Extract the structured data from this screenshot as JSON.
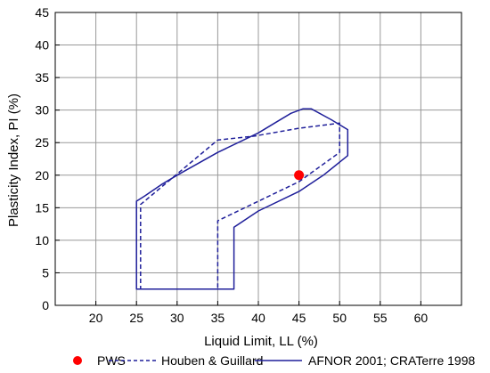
{
  "chart_data": {
    "type": "scatter",
    "xlabel": "Liquid Limit, LL (%)",
    "ylabel": "Plasticity Index, PI (%)",
    "xlim": [
      15,
      65
    ],
    "ylim": [
      0,
      45
    ],
    "x_ticks": [
      20,
      25,
      30,
      35,
      40,
      45,
      50,
      55,
      60
    ],
    "y_ticks": [
      0,
      5,
      10,
      15,
      20,
      25,
      30,
      35,
      40,
      45
    ],
    "grid": true,
    "legend_position": "bottom",
    "series": [
      {
        "name": "PWS",
        "kind": "point",
        "color": "#ff0000",
        "points": [
          [
            45,
            20
          ]
        ]
      },
      {
        "name": "Houben & Guillard",
        "kind": "dashed-polygon",
        "color": "#1f1f9a",
        "points": [
          [
            25.5,
            2.5
          ],
          [
            35,
            2.5
          ],
          [
            35,
            13
          ],
          [
            45,
            19
          ],
          [
            50,
            23.5
          ],
          [
            50,
            28
          ],
          [
            45,
            27.2
          ],
          [
            39.5,
            26
          ],
          [
            35,
            25.4
          ],
          [
            25.5,
            15.5
          ]
        ]
      },
      {
        "name": "AFNOR 2001; CRATerre 1998",
        "kind": "solid-polygon",
        "color": "#1f1f9a",
        "points": [
          [
            25,
            2.5
          ],
          [
            37,
            2.5
          ],
          [
            37,
            12
          ],
          [
            40,
            14.5
          ],
          [
            45,
            17.5
          ],
          [
            48,
            20
          ],
          [
            51,
            23
          ],
          [
            51,
            27
          ],
          [
            49,
            28.5
          ],
          [
            46.5,
            30.2
          ],
          [
            45.5,
            30.2
          ],
          [
            44,
            29.5
          ],
          [
            42,
            28
          ],
          [
            40,
            26.5
          ],
          [
            35,
            23.5
          ],
          [
            30,
            20
          ],
          [
            28,
            18.5
          ],
          [
            26,
            16.8
          ],
          [
            25,
            16
          ]
        ]
      }
    ]
  }
}
